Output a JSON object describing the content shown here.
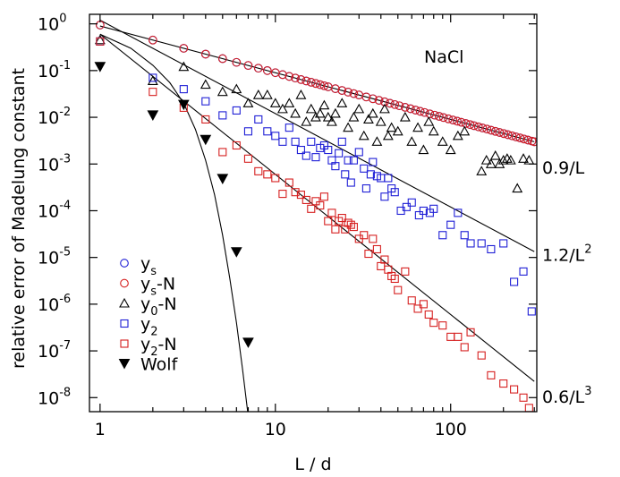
{
  "chart_data": {
    "type": "scatter",
    "title": "",
    "xlabel": "L / d",
    "ylabel": "relative error of Madelung constant",
    "xscale": "log",
    "yscale": "log",
    "xlim": [
      0.87,
      310
    ],
    "ylim": [
      5e-09,
      1.6
    ],
    "x_ticks": [
      {
        "value": 1,
        "label": "1"
      },
      {
        "value": 10,
        "label": "10"
      },
      {
        "value": 100,
        "label": "100"
      }
    ],
    "y_ticks": [
      {
        "value": 1,
        "base": "10",
        "exp": "0"
      },
      {
        "value": 0.1,
        "base": "10",
        "exp": "-1"
      },
      {
        "value": 0.01,
        "base": "10",
        "exp": "-2"
      },
      {
        "value": 0.001,
        "base": "10",
        "exp": "-3"
      },
      {
        "value": 0.0001,
        "base": "10",
        "exp": "-4"
      },
      {
        "value": 1e-05,
        "base": "10",
        "exp": "-5"
      },
      {
        "value": 1e-06,
        "base": "10",
        "exp": "-6"
      },
      {
        "value": 1e-07,
        "base": "10",
        "exp": "-7"
      },
      {
        "value": 1e-08,
        "base": "10",
        "exp": "-8"
      }
    ],
    "grid": false,
    "legend_position": "bottom-left",
    "annotation": "NaCl",
    "series": [
      {
        "base": "y",
        "sub": "s",
        "suffix": "",
        "marker": "circle-open",
        "color": "#1f1fd6",
        "rule": "0.9/L",
        "x_range": [
          1,
          300
        ]
      },
      {
        "base": "y",
        "sub": "s",
        "suffix": "-N",
        "marker": "circle-open",
        "color": "#d62020",
        "rule": "0.9/L",
        "x_range": [
          1,
          300
        ]
      },
      {
        "base": "y",
        "sub": "0",
        "suffix": "-N",
        "marker": "triangle-open",
        "color": "#000000",
        "points": [
          [
            1,
            0.45
          ],
          [
            2,
            0.06
          ],
          [
            3,
            0.12
          ],
          [
            4,
            0.05
          ],
          [
            5,
            0.035
          ],
          [
            6,
            0.04
          ],
          [
            7,
            0.02
          ],
          [
            8,
            0.03
          ],
          [
            9,
            0.03
          ],
          [
            10,
            0.02
          ],
          [
            11,
            0.015
          ],
          [
            12,
            0.02
          ],
          [
            13,
            0.012
          ],
          [
            14,
            0.03
          ],
          [
            15,
            0.008
          ],
          [
            16,
            0.015
          ],
          [
            17,
            0.01
          ],
          [
            18,
            0.012
          ],
          [
            19,
            0.018
          ],
          [
            20,
            0.01
          ],
          [
            21,
            0.008
          ],
          [
            22,
            0.012
          ],
          [
            24,
            0.02
          ],
          [
            26,
            0.006
          ],
          [
            28,
            0.01
          ],
          [
            30,
            0.015
          ],
          [
            32,
            0.004
          ],
          [
            34,
            0.009
          ],
          [
            36,
            0.012
          ],
          [
            38,
            0.003
          ],
          [
            40,
            0.008
          ],
          [
            42,
            0.015
          ],
          [
            44,
            0.004
          ],
          [
            46,
            0.006
          ],
          [
            50,
            0.005
          ],
          [
            55,
            0.01
          ],
          [
            60,
            0.003
          ],
          [
            65,
            0.006
          ],
          [
            70,
            0.002
          ],
          [
            75,
            0.008
          ],
          [
            80,
            0.005
          ],
          [
            90,
            0.003
          ],
          [
            100,
            0.002
          ],
          [
            110,
            0.004
          ],
          [
            120,
            0.005
          ],
          [
            150,
            0.0007
          ],
          [
            160,
            0.0012
          ],
          [
            170,
            0.001
          ],
          [
            180,
            0.0015
          ],
          [
            190,
            0.001
          ],
          [
            200,
            0.0012
          ],
          [
            210,
            0.0013
          ],
          [
            220,
            0.0012
          ],
          [
            240,
            0.0003
          ],
          [
            260,
            0.0013
          ],
          [
            280,
            0.0012
          ]
        ]
      },
      {
        "base": "y",
        "sub": "2",
        "suffix": "",
        "marker": "square-open",
        "color": "#1f1fd6",
        "points": [
          [
            1,
            0.42
          ],
          [
            2,
            0.07
          ],
          [
            3,
            0.04
          ],
          [
            4,
            0.022
          ],
          [
            5,
            0.011
          ],
          [
            6,
            0.014
          ],
          [
            7,
            0.005
          ],
          [
            8,
            0.009
          ],
          [
            9,
            0.005
          ],
          [
            10,
            0.004
          ],
          [
            11,
            0.003
          ],
          [
            12,
            0.006
          ],
          [
            13,
            0.003
          ],
          [
            14,
            0.002
          ],
          [
            15,
            0.0015
          ],
          [
            16,
            0.003
          ],
          [
            17,
            0.0014
          ],
          [
            18,
            0.0022
          ],
          [
            19,
            0.0025
          ],
          [
            20,
            0.002
          ],
          [
            21,
            0.0012
          ],
          [
            22,
            0.0009
          ],
          [
            23,
            0.0017
          ],
          [
            24,
            0.003
          ],
          [
            25,
            0.0006
          ],
          [
            26,
            0.0012
          ],
          [
            27,
            0.0004
          ],
          [
            28,
            0.0012
          ],
          [
            30,
            0.0018
          ],
          [
            32,
            0.0008
          ],
          [
            33,
            0.0003
          ],
          [
            35,
            0.0006
          ],
          [
            36,
            0.0011
          ],
          [
            38,
            0.00055
          ],
          [
            40,
            0.0005
          ],
          [
            42,
            0.0002
          ],
          [
            44,
            0.0005
          ],
          [
            46,
            0.0003
          ],
          [
            48,
            0.00025
          ],
          [
            52,
            0.0001
          ],
          [
            56,
            0.00012
          ],
          [
            60,
            0.00015
          ],
          [
            66,
            8e-05
          ],
          [
            70,
            0.0001
          ],
          [
            76,
            9e-05
          ],
          [
            80,
            0.00011
          ],
          [
            90,
            3e-05
          ],
          [
            100,
            5e-05
          ],
          [
            110,
            9e-05
          ],
          [
            120,
            3e-05
          ],
          [
            130,
            2e-05
          ],
          [
            150,
            2e-05
          ],
          [
            170,
            1.5e-05
          ],
          [
            200,
            2e-05
          ],
          [
            230,
            3e-06
          ],
          [
            260,
            5e-06
          ],
          [
            290,
            7e-07
          ]
        ]
      },
      {
        "base": "y",
        "sub": "2",
        "suffix": "-N",
        "marker": "square-open",
        "color": "#d62020",
        "points": [
          [
            1,
            0.42
          ],
          [
            2,
            0.035
          ],
          [
            3,
            0.016
          ],
          [
            4,
            0.009
          ],
          [
            5,
            0.0018
          ],
          [
            6,
            0.0025
          ],
          [
            7,
            0.0013
          ],
          [
            8,
            0.0007
          ],
          [
            9,
            0.0006
          ],
          [
            10,
            0.0005
          ],
          [
            11,
            0.00023
          ],
          [
            12,
            0.0004
          ],
          [
            13,
            0.00025
          ],
          [
            14,
            0.00022
          ],
          [
            15,
            0.00017
          ],
          [
            16,
            0.00011
          ],
          [
            17,
            0.00016
          ],
          [
            18,
            0.00013
          ],
          [
            19,
            0.0002
          ],
          [
            20,
            6e-05
          ],
          [
            21,
            9e-05
          ],
          [
            22,
            4e-05
          ],
          [
            23,
            6e-05
          ],
          [
            24,
            7e-05
          ],
          [
            25,
            4e-05
          ],
          [
            26,
            5.5e-05
          ],
          [
            27,
            5e-05
          ],
          [
            28,
            4.5e-05
          ],
          [
            30,
            2.5e-05
          ],
          [
            32,
            3e-05
          ],
          [
            34,
            1.2e-05
          ],
          [
            36,
            2.5e-05
          ],
          [
            38,
            1.5e-05
          ],
          [
            40,
            6.5e-06
          ],
          [
            42,
            9e-06
          ],
          [
            44,
            5.5e-06
          ],
          [
            46,
            4e-06
          ],
          [
            48,
            3.5e-06
          ],
          [
            50,
            2e-06
          ],
          [
            55,
            5e-06
          ],
          [
            60,
            1.2e-06
          ],
          [
            65,
            8e-07
          ],
          [
            70,
            1e-06
          ],
          [
            75,
            6e-07
          ],
          [
            80,
            4e-07
          ],
          [
            90,
            3.5e-07
          ],
          [
            100,
            2e-07
          ],
          [
            110,
            2e-07
          ],
          [
            120,
            1.2e-07
          ],
          [
            130,
            2.5e-07
          ],
          [
            150,
            8e-08
          ],
          [
            170,
            3e-08
          ],
          [
            200,
            2e-08
          ],
          [
            230,
            1.5e-08
          ],
          [
            260,
            1e-08
          ],
          [
            280,
            6e-09
          ]
        ]
      },
      {
        "base": "Wolf",
        "sub": "",
        "suffix": "",
        "marker": "triangle-down-filled",
        "color": "#000000",
        "points": [
          [
            1,
            0.12
          ],
          [
            2,
            0.011
          ],
          [
            3,
            0.0185
          ],
          [
            4,
            0.0033
          ],
          [
            5,
            0.00048
          ],
          [
            6,
            1.3e-05
          ],
          [
            7,
            1.5e-07
          ]
        ]
      }
    ],
    "fit_lines": [
      {
        "label": "0.9/L",
        "coef": 0.9,
        "power": 1,
        "label_y": 0.00085
      },
      {
        "label": "1.2/L",
        "sup": "2",
        "coef": 1.2,
        "power": 2,
        "label_y": 1.15e-05
      },
      {
        "label": "0.6/L",
        "sup": "3",
        "coef": 0.6,
        "power": 3,
        "label_y": 1.05e-08
      }
    ],
    "wolf_curve": [
      [
        1,
        0.6
      ],
      [
        1.5,
        0.3
      ],
      [
        2,
        0.13
      ],
      [
        2.5,
        0.055
      ],
      [
        3,
        0.02
      ],
      [
        3.5,
        0.0055
      ],
      [
        4,
        0.0012
      ],
      [
        4.5,
        0.00022
      ],
      [
        5,
        3e-05
      ],
      [
        5.5,
        3.5e-06
      ],
      [
        6,
        4e-07
      ],
      [
        6.5,
        4e-08
      ],
      [
        7,
        4e-09
      ],
      [
        7.3,
        8e-10
      ]
    ]
  }
}
